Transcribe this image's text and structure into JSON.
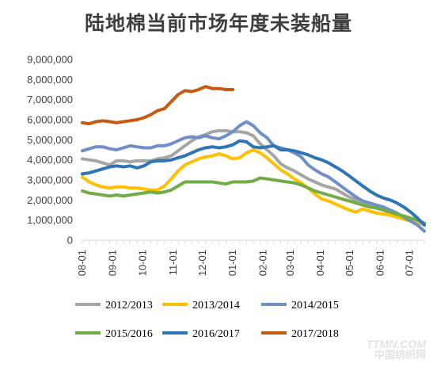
{
  "chart_data": {
    "type": "line",
    "title": "陆地棉当前市场年度未装船量",
    "xlabel": "",
    "ylabel": "",
    "ylim": [
      0,
      9000000
    ],
    "yticks": [
      0,
      1000000,
      2000000,
      3000000,
      4000000,
      5000000,
      6000000,
      7000000,
      8000000,
      9000000
    ],
    "ytick_labels": [
      "0",
      "1,000,000",
      "2,000,000",
      "3,000,000",
      "4,000,000",
      "5,000,000",
      "6,000,000",
      "7,000,000",
      "8,000,000",
      "9,000,000"
    ],
    "xlim": [
      0,
      50
    ],
    "xtick_labels": [
      "08-01",
      "09-01",
      "10-01",
      "11-01",
      "12-01",
      "01-01",
      "02-01",
      "03-01",
      "04-01",
      "05-01",
      "06-01",
      "07-01"
    ],
    "xtick_weeks": [
      0,
      4.43,
      8.86,
      13.29,
      17.57,
      22,
      26.43,
      30.43,
      34.86,
      39.14,
      43.57,
      47.86
    ],
    "grid": false,
    "legend_position": "bottom",
    "series": [
      {
        "name": "2012/2013",
        "color": "#a5a5a5",
        "values": [
          4050000,
          4000000,
          3950000,
          3850000,
          3750000,
          3950000,
          3950000,
          3900000,
          3950000,
          3950000,
          3950000,
          4050000,
          4100000,
          4200000,
          4450000,
          4700000,
          4950000,
          5150000,
          5250000,
          5400000,
          5450000,
          5450000,
          5400000,
          5400000,
          5350000,
          5200000,
          4800000,
          4500000,
          4200000,
          3800000,
          3600000,
          3450000,
          3250000,
          3050000,
          2900000,
          2750000,
          2650000,
          2550000,
          2350000,
          2150000,
          2000000,
          1850000,
          1750000,
          1600000,
          1500000,
          1350000,
          1250000,
          1150000,
          1050000,
          950000,
          850000
        ]
      },
      {
        "name": "2013/2014",
        "color": "#ffc000",
        "values": [
          3150000,
          2900000,
          2750000,
          2650000,
          2600000,
          2650000,
          2650000,
          2600000,
          2600000,
          2550000,
          2500000,
          2500000,
          2700000,
          3050000,
          3450000,
          3750000,
          3900000,
          4050000,
          4150000,
          4200000,
          4300000,
          4200000,
          4050000,
          4100000,
          4350000,
          4500000,
          4350000,
          4100000,
          3800000,
          3500000,
          3300000,
          3050000,
          2850000,
          2600000,
          2300000,
          2050000,
          1950000,
          1800000,
          1650000,
          1500000,
          1400000,
          1550000,
          1450000,
          1350000,
          1300000,
          1250000,
          1150000,
          1050000,
          950000,
          850000,
          800000
        ]
      },
      {
        "name": "2014/2015",
        "color": "#6e8fc8",
        "values": [
          4450000,
          4550000,
          4650000,
          4650000,
          4550000,
          4500000,
          4600000,
          4700000,
          4650000,
          4600000,
          4600000,
          4700000,
          4700000,
          4800000,
          4950000,
          5100000,
          5150000,
          5100000,
          5200000,
          5100000,
          5050000,
          5200000,
          5400000,
          5700000,
          5900000,
          5700000,
          5350000,
          5100000,
          4700000,
          4600000,
          4500000,
          4350000,
          4150000,
          3750000,
          3500000,
          3300000,
          3150000,
          2900000,
          2650000,
          2400000,
          2150000,
          1950000,
          1850000,
          1750000,
          1650000,
          1500000,
          1350000,
          1150000,
          950000,
          750000,
          450000
        ]
      },
      {
        "name": "2015/2016",
        "color": "#70ad47",
        "values": [
          2450000,
          2350000,
          2300000,
          2250000,
          2200000,
          2250000,
          2200000,
          2250000,
          2300000,
          2350000,
          2400000,
          2350000,
          2400000,
          2500000,
          2700000,
          2900000,
          2900000,
          2900000,
          2900000,
          2900000,
          2850000,
          2800000,
          2900000,
          2900000,
          2900000,
          2950000,
          3100000,
          3050000,
          3000000,
          2950000,
          2900000,
          2850000,
          2750000,
          2600000,
          2450000,
          2350000,
          2250000,
          2150000,
          2050000,
          1950000,
          1850000,
          1750000,
          1650000,
          1600000,
          1500000,
          1400000,
          1300000,
          1200000,
          1100000,
          1000000,
          850000
        ]
      },
      {
        "name": "2016/2017",
        "color": "#2e75b6",
        "values": [
          3300000,
          3350000,
          3450000,
          3550000,
          3650000,
          3700000,
          3650000,
          3700000,
          3600000,
          3700000,
          3900000,
          3950000,
          3950000,
          4000000,
          4100000,
          4200000,
          4350000,
          4500000,
          4600000,
          4650000,
          4600000,
          4650000,
          4750000,
          4950000,
          4900000,
          4650000,
          4600000,
          4650000,
          4700000,
          4500000,
          4500000,
          4450000,
          4350000,
          4250000,
          4100000,
          4000000,
          3850000,
          3650000,
          3450000,
          3200000,
          2950000,
          2700000,
          2450000,
          2250000,
          2100000,
          2000000,
          1850000,
          1650000,
          1400000,
          1100000,
          750000
        ]
      },
      {
        "name": "2017/2018",
        "color": "#c55a11",
        "values": [
          5850000,
          5800000,
          5900000,
          5950000,
          5900000,
          5850000,
          5900000,
          5950000,
          6000000,
          6100000,
          6250000,
          6450000,
          6550000,
          6900000,
          7250000,
          7450000,
          7400000,
          7500000,
          7650000,
          7550000,
          7550000,
          7500000,
          7500000
        ]
      }
    ]
  },
  "watermark": {
    "line1": "TTMN.COM",
    "line2": "中国纺织网"
  }
}
